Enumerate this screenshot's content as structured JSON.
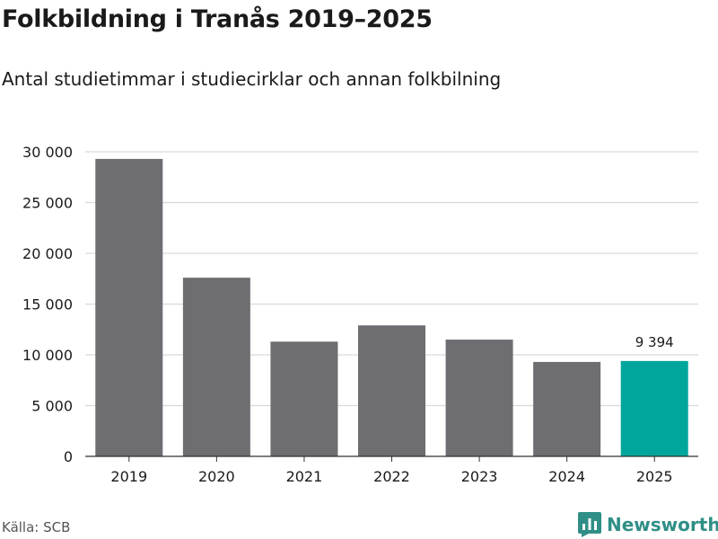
{
  "chart_data": {
    "type": "bar",
    "title": "Folkbildning i Tranås 2019–2025",
    "subtitle": "Antal studietimmar i studiecirklar och annan folkbilning",
    "categories": [
      "2019",
      "2020",
      "2021",
      "2022",
      "2023",
      "2024",
      "2025"
    ],
    "values": [
      29300,
      17600,
      11300,
      12900,
      11500,
      9300,
      9394
    ],
    "highlight_index": 6,
    "highlight_label": "9 394",
    "ylim": [
      0,
      30000
    ],
    "yticks": [
      0,
      5000,
      10000,
      15000,
      20000,
      25000,
      30000
    ],
    "ytick_labels": [
      "0",
      "5 000",
      "10 000",
      "15 000",
      "20 000",
      "25 000",
      "30 000"
    ],
    "xlabel": "",
    "ylabel": "",
    "grid": true
  },
  "colors": {
    "bar": "#6e6d72",
    "highlight": "#00a69b",
    "grid": "#d9d9d9",
    "axis": "#333333",
    "text": "#1a1a1a",
    "brand": "#2f8f86"
  },
  "source": "Källa: SCB",
  "brand": {
    "name": "Newsworthy",
    "icon": "bar-chart-logo-icon"
  }
}
